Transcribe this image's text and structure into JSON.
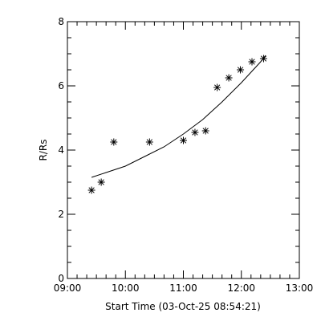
{
  "chart_data": {
    "type": "scatter",
    "title": "",
    "xlabel": "Start Time (03-Oct-25 08:54:21)",
    "ylabel": "R/Rs",
    "xlim": [
      "09:00",
      "13:00"
    ],
    "ylim": [
      0,
      8
    ],
    "x_tick_labels": [
      "09:00",
      "10:00",
      "11:00",
      "12:00",
      "13:00"
    ],
    "y_tick_labels": [
      "0",
      "2",
      "4",
      "6",
      "8"
    ],
    "grid": false,
    "legend": "none",
    "series": [
      {
        "marker": "asterisk",
        "points": [
          {
            "x": "09:25",
            "y": 2.75
          },
          {
            "x": "09:35",
            "y": 3.0
          },
          {
            "x": "09:48",
            "y": 4.25
          },
          {
            "x": "10:25",
            "y": 4.25
          },
          {
            "x": "11:00",
            "y": 4.3
          },
          {
            "x": "11:12",
            "y": 4.55
          },
          {
            "x": "11:23",
            "y": 4.6
          },
          {
            "x": "11:35",
            "y": 5.95
          },
          {
            "x": "11:47",
            "y": 6.25
          },
          {
            "x": "11:59",
            "y": 6.5
          },
          {
            "x": "12:11",
            "y": 6.75
          },
          {
            "x": "12:23",
            "y": 6.85
          }
        ]
      },
      {
        "style": "line",
        "points": [
          {
            "x": "09:25",
            "y": 3.15
          },
          {
            "x": "09:40",
            "y": 3.3
          },
          {
            "x": "10:00",
            "y": 3.5
          },
          {
            "x": "10:20",
            "y": 3.8
          },
          {
            "x": "10:40",
            "y": 4.1
          },
          {
            "x": "11:00",
            "y": 4.5
          },
          {
            "x": "11:20",
            "y": 4.95
          },
          {
            "x": "11:40",
            "y": 5.5
          },
          {
            "x": "12:00",
            "y": 6.1
          },
          {
            "x": "12:20",
            "y": 6.75
          },
          {
            "x": "12:25",
            "y": 6.95
          }
        ]
      }
    ]
  }
}
